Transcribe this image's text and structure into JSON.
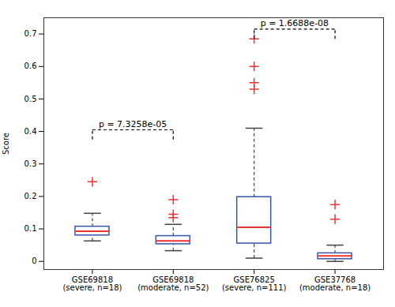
{
  "chart_data": {
    "type": "box",
    "ylabel": "Score",
    "categories": [
      "GSE69818\n(severe, n=18)",
      "GSE69818\n(moderate, n=52)",
      "GSE76825\n(severe, n=111)",
      "GSE37768\n(moderate, n=18)"
    ],
    "whislo": [
      0.063,
      0.033,
      0.01,
      0.0
    ],
    "q1": [
      0.08,
      0.053,
      0.055,
      0.007
    ],
    "med": [
      0.093,
      0.063,
      0.105,
      0.017
    ],
    "q3": [
      0.107,
      0.078,
      0.198,
      0.025
    ],
    "whishi": [
      0.148,
      0.114,
      0.41,
      0.05
    ],
    "color": "#3355aa",
    "median": {
      "color": "#EE3333"
    },
    "fliers": {
      "color": "#EE3333",
      "marker": "plus",
      "values": [
        [
          0.245
        ],
        [
          0.135,
          0.145,
          0.19
        ],
        [
          0.53,
          0.55,
          0.6,
          0.685
        ],
        [
          0.13,
          0.175
        ]
      ]
    },
    "ylim": [
      -0.025,
      0.75
    ],
    "yticks": [
      0,
      0.1,
      0.2,
      0.3,
      0.4,
      0.5,
      0.6,
      0.7
    ],
    "annotations": [
      {
        "type": "bracket",
        "x1": "GSE69818\n(severe, n=18)",
        "x2": "GSE69818\n(moderate, n=52)",
        "y_top": 0.405,
        "y_drop": 0.03,
        "text": "p = 7.3258e-05"
      },
      {
        "type": "bracket",
        "x1": "GSE76825\n(severe, n=111)",
        "x2": "GSE37768\n(moderate, n=18)",
        "y_top": 0.715,
        "y_drop": 0.03,
        "text": "p = 1.6688e-08"
      }
    ]
  }
}
